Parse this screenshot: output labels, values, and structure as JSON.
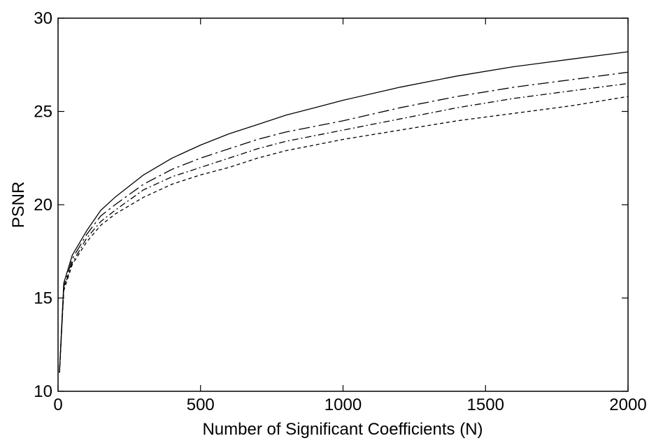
{
  "chart_data": {
    "type": "line",
    "title": "",
    "xlabel": "Number of Significant Coefficients (N)",
    "ylabel": "PSNR",
    "xlim": [
      0,
      2000
    ],
    "ylim": [
      10,
      30
    ],
    "xticks": [
      0,
      500,
      1000,
      1500,
      2000
    ],
    "yticks": [
      10,
      15,
      20,
      25,
      30
    ],
    "xtick_labels": [
      "0",
      "500",
      "1000",
      "1500",
      "2000"
    ],
    "ytick_labels": [
      "10",
      "15",
      "20",
      "25",
      "30"
    ],
    "grid": false,
    "series": [
      {
        "style": "solid",
        "x": [
          5,
          20,
          50,
          100,
          150,
          200,
          300,
          400,
          500,
          600,
          700,
          800,
          900,
          1000,
          1200,
          1400,
          1600,
          1800,
          2000
        ],
        "values": [
          11.0,
          15.8,
          17.3,
          18.6,
          19.7,
          20.4,
          21.6,
          22.5,
          23.2,
          23.8,
          24.3,
          24.8,
          25.2,
          25.6,
          26.3,
          26.9,
          27.4,
          27.8,
          28.2
        ]
      },
      {
        "style": "dashdot-long",
        "x": [
          5,
          20,
          50,
          100,
          150,
          200,
          300,
          400,
          500,
          600,
          700,
          800,
          900,
          1000,
          1200,
          1400,
          1600,
          1800,
          2000
        ],
        "values": [
          11.0,
          15.6,
          17.1,
          18.4,
          19.4,
          20.0,
          21.1,
          21.9,
          22.5,
          23.0,
          23.5,
          23.9,
          24.2,
          24.5,
          25.2,
          25.8,
          26.3,
          26.7,
          27.1
        ]
      },
      {
        "style": "dashdot",
        "x": [
          5,
          20,
          50,
          100,
          150,
          200,
          300,
          400,
          500,
          600,
          700,
          800,
          900,
          1000,
          1200,
          1400,
          1600,
          1800,
          2000
        ],
        "values": [
          11.0,
          15.5,
          16.9,
          18.2,
          19.1,
          19.7,
          20.8,
          21.5,
          22.0,
          22.5,
          23.0,
          23.4,
          23.7,
          24.0,
          24.6,
          25.2,
          25.7,
          26.1,
          26.5
        ]
      },
      {
        "style": "dashed",
        "x": [
          5,
          20,
          50,
          100,
          150,
          200,
          300,
          400,
          500,
          600,
          700,
          800,
          900,
          1000,
          1200,
          1400,
          1600,
          1800,
          2000
        ],
        "values": [
          11.0,
          15.4,
          16.8,
          18.0,
          18.9,
          19.5,
          20.4,
          21.1,
          21.6,
          22.0,
          22.5,
          22.9,
          23.2,
          23.5,
          24.0,
          24.5,
          24.9,
          25.3,
          25.8
        ]
      }
    ]
  }
}
